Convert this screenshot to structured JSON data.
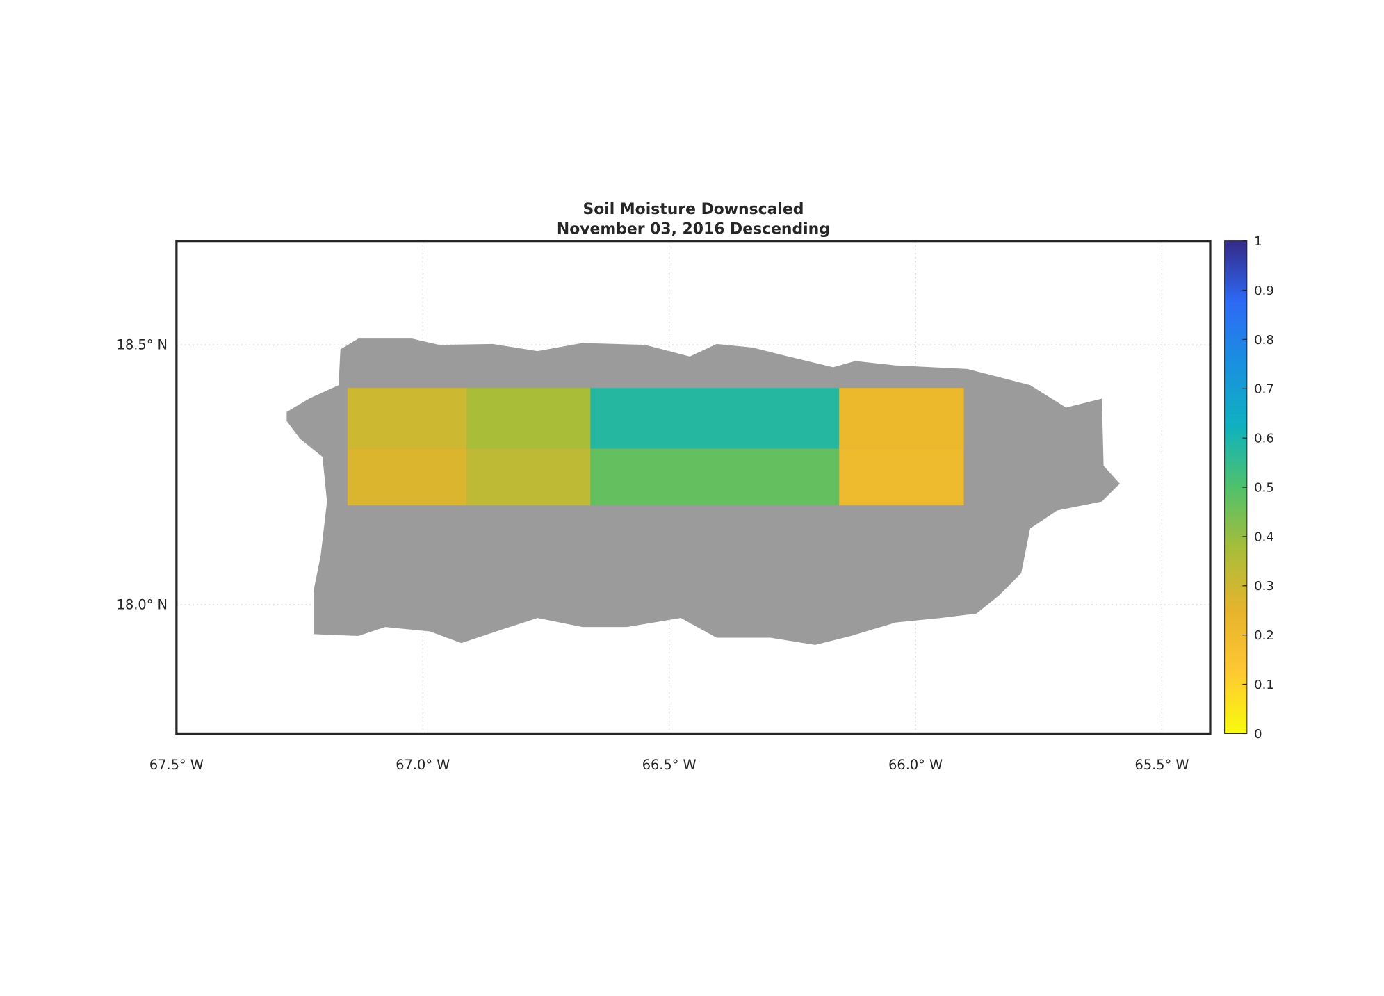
{
  "chart_data": {
    "type": "map",
    "title": [
      "Soil Moisture Downscaled",
      "November 03, 2016 Descending"
    ],
    "xlim": [
      -67.5,
      -65.402
    ],
    "ylim": [
      17.752,
      18.7
    ],
    "xticks": [
      {
        "value": -67.5,
        "label": "67.5° W"
      },
      {
        "value": -67.0,
        "label": "67.0° W"
      },
      {
        "value": -66.5,
        "label": "66.5° W"
      },
      {
        "value": -66.0,
        "label": "66.0° W"
      },
      {
        "value": -65.5,
        "label": "65.5° W"
      }
    ],
    "yticks": [
      {
        "value": 18.0,
        "label": "18.0° N"
      },
      {
        "value": 18.5,
        "label": "18.5° N"
      }
    ],
    "grid": true,
    "land_color": "#9b9b9b",
    "colorbar": {
      "lim": [
        0,
        1
      ],
      "ticks": [
        0,
        0.1,
        0.2,
        0.3,
        0.4,
        0.5,
        0.6,
        0.7,
        0.8,
        0.9,
        1
      ],
      "colormap": [
        "#f9fb0e",
        "#fec832",
        "#e6b42c",
        "#a8bd3a",
        "#4fc16b",
        "#0fb1c0",
        "#1a90df",
        "#2d6af6",
        "#352a87"
      ]
    },
    "tiles": [
      {
        "lon": [
          -67.153,
          -66.911
        ],
        "lat": [
          18.3,
          18.417
        ],
        "value": 0.3
      },
      {
        "lon": [
          -67.153,
          -66.911
        ],
        "lat": [
          18.191,
          18.3
        ],
        "value": 0.27
      },
      {
        "lon": [
          -66.911,
          -66.66
        ],
        "lat": [
          18.3,
          18.417
        ],
        "value": 0.37
      },
      {
        "lon": [
          -66.911,
          -66.66
        ],
        "lat": [
          18.191,
          18.3
        ],
        "value": 0.33
      },
      {
        "lon": [
          -66.66,
          -66.155
        ],
        "lat": [
          18.3,
          18.417
        ],
        "value": 0.58
      },
      {
        "lon": [
          -66.66,
          -66.155
        ],
        "lat": [
          18.191,
          18.3
        ],
        "value": 0.47
      },
      {
        "lon": [
          -66.155,
          -65.902
        ],
        "lat": [
          18.3,
          18.417
        ],
        "value": 0.22
      },
      {
        "lon": [
          -66.155,
          -65.902
        ],
        "lat": [
          18.191,
          18.3
        ],
        "value": 0.21
      }
    ]
  }
}
